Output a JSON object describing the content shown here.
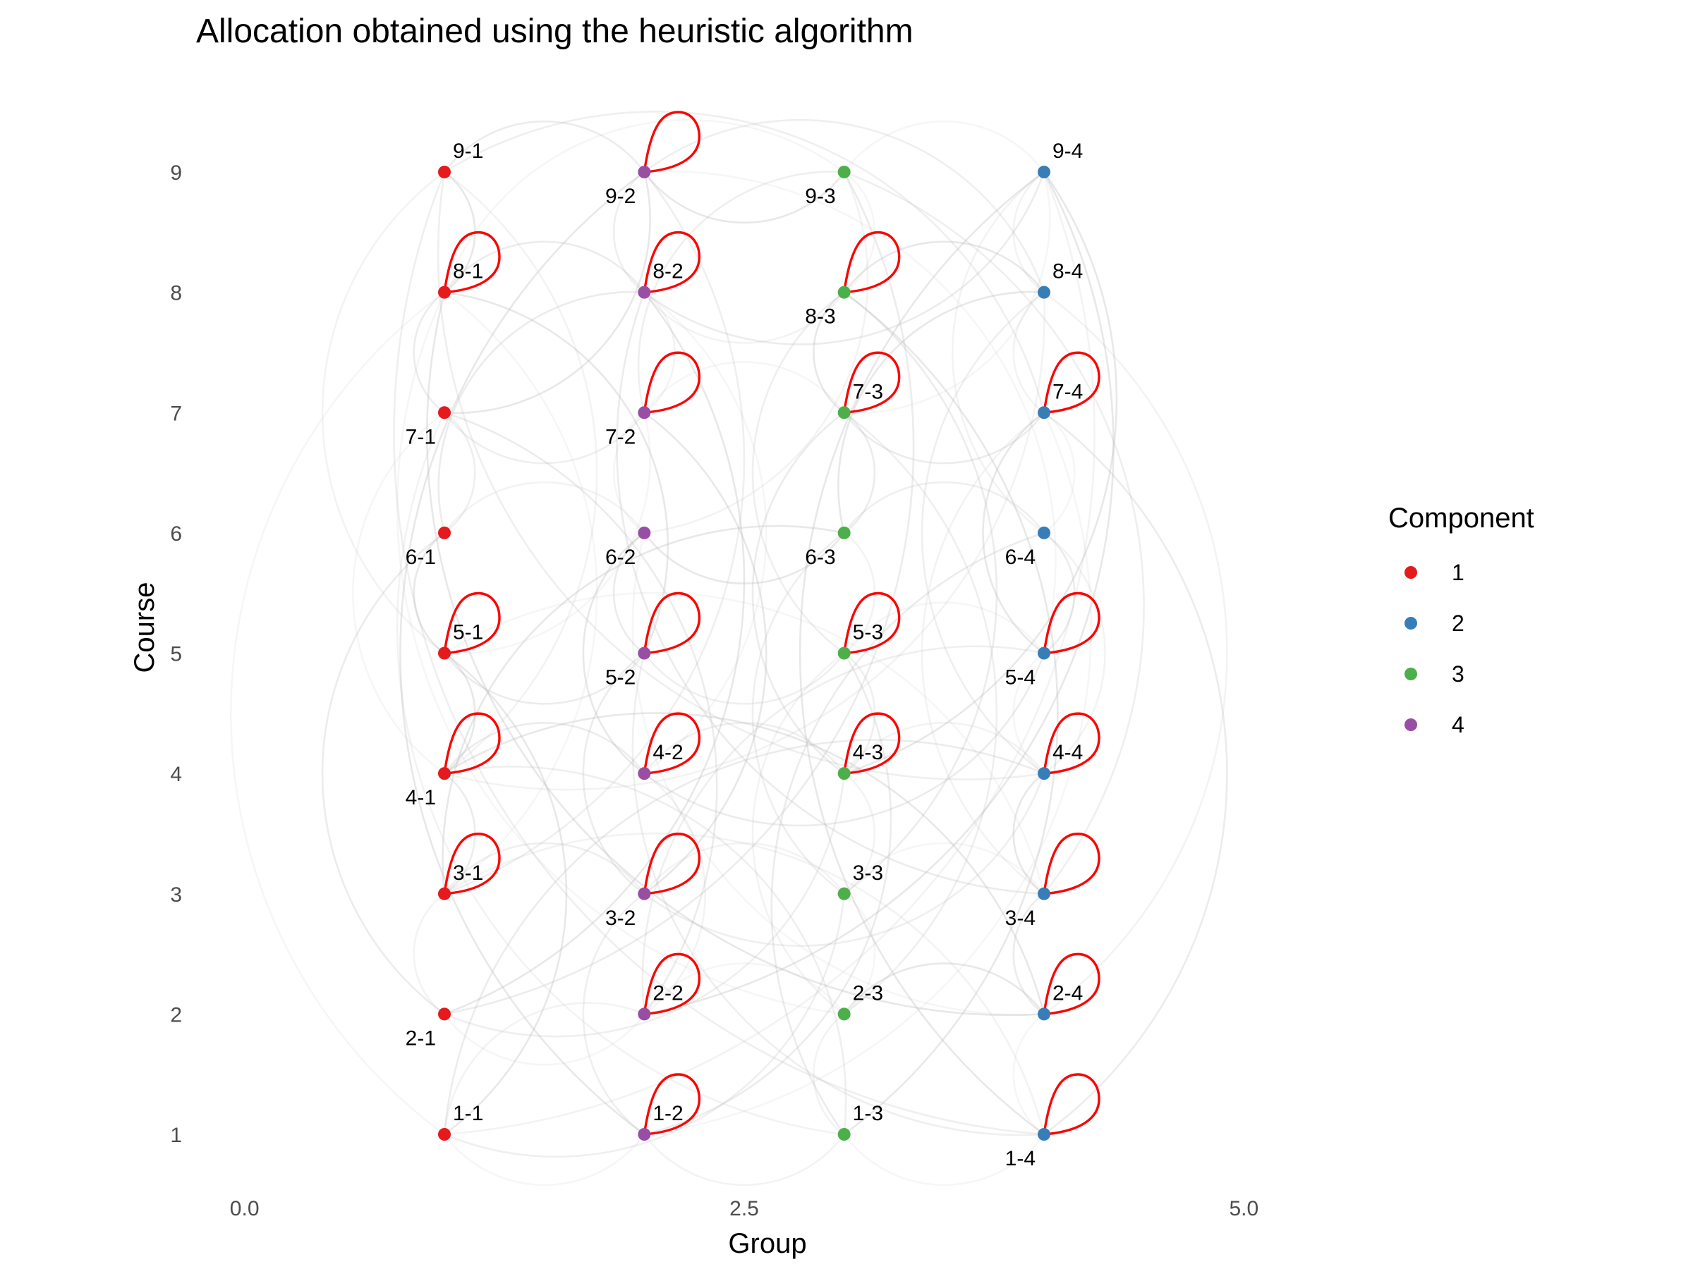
{
  "chart_data": {
    "type": "scatter",
    "title": "Allocation obtained using the heuristic algorithm",
    "xlabel": "Group",
    "ylabel": "Course",
    "xlim": [
      -1.0,
      7.0
    ],
    "ylim": [
      0.7,
      9.6
    ],
    "x_ticks": [
      {
        "value": 0,
        "label": "0.0"
      },
      {
        "value": 2.5,
        "label": "2.5"
      },
      {
        "value": 5,
        "label": "5.0"
      }
    ],
    "y_ticks": [
      {
        "value": 1,
        "label": "1"
      },
      {
        "value": 2,
        "label": "2"
      },
      {
        "value": 3,
        "label": "3"
      },
      {
        "value": 4,
        "label": "4"
      },
      {
        "value": 5,
        "label": "5"
      },
      {
        "value": 6,
        "label": "6"
      },
      {
        "value": 7,
        "label": "7"
      },
      {
        "value": 8,
        "label": "8"
      },
      {
        "value": 9,
        "label": "9"
      }
    ],
    "grid": false,
    "legend": {
      "title": "Component",
      "placement": "right",
      "entries": [
        {
          "label": "1",
          "color": "#e41a1c"
        },
        {
          "label": "2",
          "color": "#377eb8"
        },
        {
          "label": "3",
          "color": "#4daf4a"
        },
        {
          "label": "4",
          "color": "#984ea3"
        }
      ]
    },
    "component_colors": {
      "1": "#e41a1c",
      "2": "#377eb8",
      "3": "#4daf4a",
      "4": "#984ea3"
    },
    "self_loop_color": "#ff0000",
    "edge_color": "#bdbdbd",
    "nodes": [
      {
        "id": "1-1",
        "x": 1,
        "y": 1,
        "component": 1,
        "label_pos": "above",
        "self_loop": false
      },
      {
        "id": "1-2",
        "x": 2,
        "y": 1,
        "component": 4,
        "label_pos": "above",
        "self_loop": true
      },
      {
        "id": "1-3",
        "x": 3,
        "y": 1,
        "component": 3,
        "label_pos": "above",
        "self_loop": false
      },
      {
        "id": "1-4",
        "x": 4,
        "y": 1,
        "component": 2,
        "label_pos": "below",
        "self_loop": true
      },
      {
        "id": "2-1",
        "x": 1,
        "y": 2,
        "component": 1,
        "label_pos": "below",
        "self_loop": false
      },
      {
        "id": "2-2",
        "x": 2,
        "y": 2,
        "component": 4,
        "label_pos": "above",
        "self_loop": true
      },
      {
        "id": "2-3",
        "x": 3,
        "y": 2,
        "component": 3,
        "label_pos": "above",
        "self_loop": false
      },
      {
        "id": "2-4",
        "x": 4,
        "y": 2,
        "component": 2,
        "label_pos": "above",
        "self_loop": true
      },
      {
        "id": "3-1",
        "x": 1,
        "y": 3,
        "component": 1,
        "label_pos": "above",
        "self_loop": true
      },
      {
        "id": "3-2",
        "x": 2,
        "y": 3,
        "component": 4,
        "label_pos": "below",
        "self_loop": true
      },
      {
        "id": "3-3",
        "x": 3,
        "y": 3,
        "component": 3,
        "label_pos": "above",
        "self_loop": false
      },
      {
        "id": "3-4",
        "x": 4,
        "y": 3,
        "component": 2,
        "label_pos": "below",
        "self_loop": true
      },
      {
        "id": "4-1",
        "x": 1,
        "y": 4,
        "component": 1,
        "label_pos": "below",
        "self_loop": true
      },
      {
        "id": "4-2",
        "x": 2,
        "y": 4,
        "component": 4,
        "label_pos": "above",
        "self_loop": true
      },
      {
        "id": "4-3",
        "x": 3,
        "y": 4,
        "component": 3,
        "label_pos": "above",
        "self_loop": true
      },
      {
        "id": "4-4",
        "x": 4,
        "y": 4,
        "component": 2,
        "label_pos": "above",
        "self_loop": true
      },
      {
        "id": "5-1",
        "x": 1,
        "y": 5,
        "component": 1,
        "label_pos": "above",
        "self_loop": true
      },
      {
        "id": "5-2",
        "x": 2,
        "y": 5,
        "component": 4,
        "label_pos": "below",
        "self_loop": true
      },
      {
        "id": "5-3",
        "x": 3,
        "y": 5,
        "component": 3,
        "label_pos": "above",
        "self_loop": true
      },
      {
        "id": "5-4",
        "x": 4,
        "y": 5,
        "component": 2,
        "label_pos": "below",
        "self_loop": true
      },
      {
        "id": "6-1",
        "x": 1,
        "y": 6,
        "component": 1,
        "label_pos": "below",
        "self_loop": false
      },
      {
        "id": "6-2",
        "x": 2,
        "y": 6,
        "component": 4,
        "label_pos": "below",
        "self_loop": false
      },
      {
        "id": "6-3",
        "x": 3,
        "y": 6,
        "component": 3,
        "label_pos": "below",
        "self_loop": false
      },
      {
        "id": "6-4",
        "x": 4,
        "y": 6,
        "component": 2,
        "label_pos": "below",
        "self_loop": false
      },
      {
        "id": "7-1",
        "x": 1,
        "y": 7,
        "component": 1,
        "label_pos": "below",
        "self_loop": false
      },
      {
        "id": "7-2",
        "x": 2,
        "y": 7,
        "component": 4,
        "label_pos": "below",
        "self_loop": true
      },
      {
        "id": "7-3",
        "x": 3,
        "y": 7,
        "component": 3,
        "label_pos": "above",
        "self_loop": true
      },
      {
        "id": "7-4",
        "x": 4,
        "y": 7,
        "component": 2,
        "label_pos": "above",
        "self_loop": true
      },
      {
        "id": "8-1",
        "x": 1,
        "y": 8,
        "component": 1,
        "label_pos": "above",
        "self_loop": true
      },
      {
        "id": "8-2",
        "x": 2,
        "y": 8,
        "component": 4,
        "label_pos": "above",
        "self_loop": true
      },
      {
        "id": "8-3",
        "x": 3,
        "y": 8,
        "component": 3,
        "label_pos": "below",
        "self_loop": true
      },
      {
        "id": "8-4",
        "x": 4,
        "y": 8,
        "component": 2,
        "label_pos": "above",
        "self_loop": false
      },
      {
        "id": "9-1",
        "x": 1,
        "y": 9,
        "component": 1,
        "label_pos": "above",
        "self_loop": false
      },
      {
        "id": "9-2",
        "x": 2,
        "y": 9,
        "component": 4,
        "label_pos": "below",
        "self_loop": true
      },
      {
        "id": "9-3",
        "x": 3,
        "y": 9,
        "component": 3,
        "label_pos": "below",
        "self_loop": false
      },
      {
        "id": "9-4",
        "x": 4,
        "y": 9,
        "component": 2,
        "label_pos": "above",
        "self_loop": false
      }
    ],
    "edges": [
      [
        "1-1",
        "1-2"
      ],
      [
        "1-1",
        "2-2"
      ],
      [
        "1-1",
        "3-3"
      ],
      [
        "1-1",
        "4-4"
      ],
      [
        "1-1",
        "5-1"
      ],
      [
        "1-1",
        "8-1"
      ],
      [
        "1-2",
        "1-3"
      ],
      [
        "1-2",
        "3-2"
      ],
      [
        "1-2",
        "5-3"
      ],
      [
        "1-2",
        "9-2"
      ],
      [
        "1-3",
        "1-4"
      ],
      [
        "1-3",
        "2-3"
      ],
      [
        "1-3",
        "4-1"
      ],
      [
        "1-3",
        "6-4"
      ],
      [
        "1-3",
        "8-3"
      ],
      [
        "1-4",
        "2-4"
      ],
      [
        "1-4",
        "3-1"
      ],
      [
        "1-4",
        "5-2"
      ],
      [
        "1-4",
        "7-4"
      ],
      [
        "1-4",
        "9-4"
      ],
      [
        "2-1",
        "2-2"
      ],
      [
        "2-1",
        "3-1"
      ],
      [
        "2-1",
        "4-3"
      ],
      [
        "2-1",
        "6-1"
      ],
      [
        "2-1",
        "8-2"
      ],
      [
        "2-2",
        "2-3"
      ],
      [
        "2-2",
        "4-2"
      ],
      [
        "2-2",
        "5-4"
      ],
      [
        "2-2",
        "7-1"
      ],
      [
        "2-3",
        "2-4"
      ],
      [
        "2-3",
        "3-3"
      ],
      [
        "2-3",
        "5-3"
      ],
      [
        "2-3",
        "7-3"
      ],
      [
        "2-4",
        "3-4"
      ],
      [
        "2-4",
        "4-1"
      ],
      [
        "2-4",
        "6-2"
      ],
      [
        "2-4",
        "8-4"
      ],
      [
        "3-1",
        "3-2"
      ],
      [
        "3-1",
        "4-1"
      ],
      [
        "3-1",
        "6-3"
      ],
      [
        "3-1",
        "8-1"
      ],
      [
        "3-2",
        "3-3"
      ],
      [
        "3-2",
        "4-4"
      ],
      [
        "3-2",
        "5-2"
      ],
      [
        "3-2",
        "7-2"
      ],
      [
        "3-3",
        "3-4"
      ],
      [
        "3-3",
        "4-3"
      ],
      [
        "3-3",
        "6-3"
      ],
      [
        "3-3",
        "8-3"
      ],
      [
        "3-4",
        "4-4"
      ],
      [
        "3-4",
        "5-1"
      ],
      [
        "3-4",
        "7-4"
      ],
      [
        "3-4",
        "9-3"
      ],
      [
        "4-1",
        "4-2"
      ],
      [
        "4-1",
        "5-1"
      ],
      [
        "4-1",
        "7-1"
      ],
      [
        "4-1",
        "9-1"
      ],
      [
        "4-2",
        "4-3"
      ],
      [
        "4-2",
        "5-4"
      ],
      [
        "4-2",
        "6-2"
      ],
      [
        "4-2",
        "8-2"
      ],
      [
        "4-3",
        "4-4"
      ],
      [
        "4-3",
        "5-3"
      ],
      [
        "4-3",
        "7-3"
      ],
      [
        "4-3",
        "9-4"
      ],
      [
        "4-4",
        "5-4"
      ],
      [
        "4-4",
        "6-4"
      ],
      [
        "4-4",
        "8-4"
      ],
      [
        "5-1",
        "5-2"
      ],
      [
        "5-1",
        "6-1"
      ],
      [
        "5-1",
        "7-2"
      ],
      [
        "5-1",
        "9-1"
      ],
      [
        "5-2",
        "5-3"
      ],
      [
        "5-2",
        "6-2"
      ],
      [
        "5-2",
        "8-1"
      ],
      [
        "5-3",
        "5-4"
      ],
      [
        "5-3",
        "6-3"
      ],
      [
        "5-3",
        "8-3"
      ],
      [
        "5-4",
        "6-4"
      ],
      [
        "5-4",
        "7-4"
      ],
      [
        "5-4",
        "9-2"
      ],
      [
        "6-1",
        "6-2"
      ],
      [
        "6-1",
        "7-1"
      ],
      [
        "6-1",
        "8-2"
      ],
      [
        "6-2",
        "6-3"
      ],
      [
        "6-2",
        "7-2"
      ],
      [
        "6-2",
        "9-3"
      ],
      [
        "6-3",
        "6-4"
      ],
      [
        "6-3",
        "7-3"
      ],
      [
        "6-3",
        "8-4"
      ],
      [
        "6-4",
        "7-4"
      ],
      [
        "6-4",
        "9-4"
      ],
      [
        "7-1",
        "7-2"
      ],
      [
        "7-1",
        "8-1"
      ],
      [
        "7-1",
        "9-2"
      ],
      [
        "7-2",
        "7-3"
      ],
      [
        "7-2",
        "8-2"
      ],
      [
        "7-2",
        "9-3"
      ],
      [
        "7-3",
        "7-4"
      ],
      [
        "7-3",
        "8-3"
      ],
      [
        "7-3",
        "9-4"
      ],
      [
        "7-4",
        "8-4"
      ],
      [
        "7-4",
        "9-1"
      ],
      [
        "8-1",
        "8-2"
      ],
      [
        "8-1",
        "9-1"
      ],
      [
        "8-1",
        "9-3"
      ],
      [
        "8-2",
        "8-3"
      ],
      [
        "8-2",
        "9-2"
      ],
      [
        "8-2",
        "9-4"
      ],
      [
        "8-3",
        "8-4"
      ],
      [
        "8-3",
        "9-3"
      ],
      [
        "8-4",
        "9-4"
      ],
      [
        "8-4",
        "9-2"
      ],
      [
        "9-1",
        "9-2"
      ],
      [
        "9-2",
        "9-3"
      ],
      [
        "9-3",
        "9-4"
      ],
      [
        "1-1",
        "9-4"
      ],
      [
        "1-4",
        "9-1"
      ],
      [
        "2-1",
        "9-3"
      ],
      [
        "2-4",
        "8-1"
      ],
      [
        "1-2",
        "7-4"
      ],
      [
        "1-3",
        "7-1"
      ],
      [
        "3-1",
        "9-2"
      ],
      [
        "3-4",
        "8-2"
      ],
      [
        "2-2",
        "9-4"
      ],
      [
        "2-3",
        "8-1"
      ],
      [
        "4-1",
        "8-4"
      ],
      [
        "4-4",
        "9-1"
      ]
    ]
  }
}
